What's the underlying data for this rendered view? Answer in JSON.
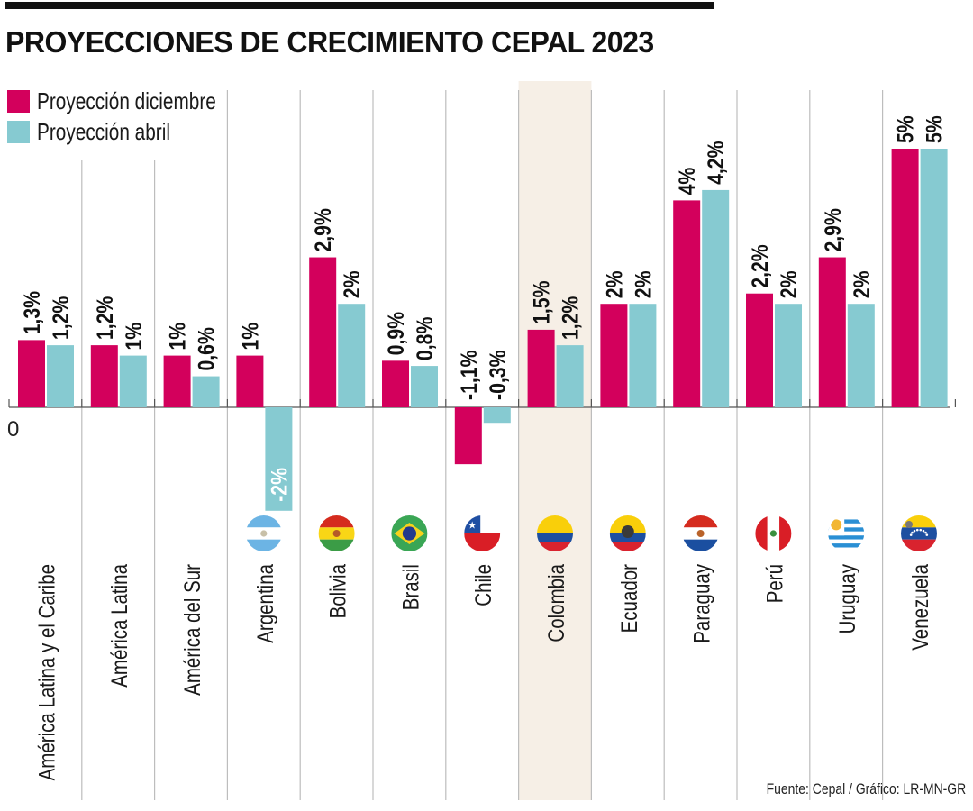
{
  "title": "PROYECCIONES DE CRECIMIENTO CEPAL 2023",
  "legend": [
    {
      "label": "Proyección diciembre",
      "color": "#d3005c"
    },
    {
      "label": "Proyección abril",
      "color": "#86cad1"
    }
  ],
  "source": "Fuente: Cepal / Gráfico: LR-MN-GR",
  "highlight_color": "#f6efe6",
  "chart_data": {
    "type": "bar",
    "title": "PROYECCIONES DE CRECIMIENTO CEPAL 2023",
    "xlabel": "",
    "ylabel": "",
    "zero_label": "0",
    "ylim": [
      -2,
      5
    ],
    "grid": false,
    "legend_position": "top-left",
    "highlighted_category": "Colombia",
    "categories": [
      "América Latina y el Caribe",
      "América Latina",
      "América del Sur",
      "Argentina",
      "Bolivia",
      "Brasil",
      "Chile",
      "Colombia",
      "Ecuador",
      "Paraguay",
      "Perú",
      "Uruguay",
      "Venezuela"
    ],
    "flags": [
      null,
      null,
      null,
      "argentina-flag",
      "bolivia-flag",
      "brazil-flag",
      "chile-flag",
      "colombia-flag",
      "ecuador-flag",
      "paraguay-flag",
      "peru-flag",
      "uruguay-flag",
      "venezuela-flag"
    ],
    "series": [
      {
        "name": "Proyección diciembre",
        "color": "#d3005c",
        "values": [
          1.3,
          1.2,
          1.0,
          1.0,
          2.9,
          0.9,
          -1.1,
          1.5,
          2.0,
          4.0,
          2.2,
          2.9,
          5.0
        ],
        "labels": [
          "1,3%",
          "1,2%",
          "1%",
          "1%",
          "2,9%",
          "0,9%",
          "-1,1%",
          "1,5%",
          "2%",
          "4%",
          "2,2%",
          "2,9%",
          "5%"
        ]
      },
      {
        "name": "Proyección abril",
        "color": "#86cad1",
        "values": [
          1.2,
          1.0,
          0.6,
          -2.0,
          2.0,
          0.8,
          -0.3,
          1.2,
          2.0,
          4.2,
          2.0,
          2.0,
          5.0
        ],
        "labels": [
          "1,2%",
          "1%",
          "0,6%",
          "-2%",
          "2%",
          "0,8%",
          "-0,3%",
          "1,2%",
          "2%",
          "4,2%",
          "2%",
          "2%",
          "5%"
        ]
      }
    ]
  }
}
